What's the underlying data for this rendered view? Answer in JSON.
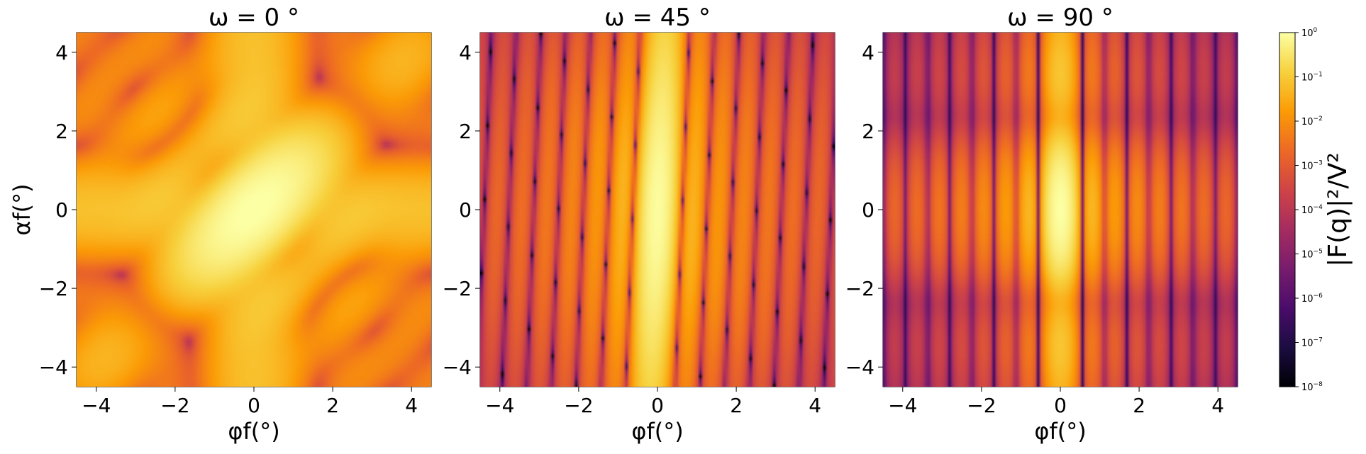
{
  "chart_data": [
    {
      "type": "heatmap",
      "title": "ω = 0 °",
      "xlabel": "φf(°)",
      "ylabel": "αf(°)",
      "xlim": [
        -4.5,
        4.5
      ],
      "ylim": [
        -4.5,
        4.5
      ],
      "xticks": [
        -4,
        -2,
        0,
        2,
        4
      ],
      "yticks": [
        -4,
        -2,
        0,
        2,
        4
      ],
      "xtick_labels": [
        "−4",
        "−2",
        "0",
        "2",
        "4"
      ],
      "ytick_labels": [
        "−4",
        "−2",
        "0",
        "2",
        "4"
      ],
      "colormap": "inferno",
      "pattern": "rotated box form factor; bright diagonal streak through origin with horizontal and vertical streaks",
      "peak_value_at": [
        0,
        0
      ]
    },
    {
      "type": "heatmap",
      "title": "ω = 45 °",
      "xlabel": "φf(°)",
      "xlim": [
        -4.5,
        4.5
      ],
      "ylim": [
        -4.5,
        4.5
      ],
      "xticks": [
        -4,
        -2,
        0,
        2,
        4
      ],
      "yticks": [
        -4,
        -2,
        0,
        2,
        4
      ],
      "xtick_labels": [
        "−4",
        "−2",
        "0",
        "2",
        "4"
      ],
      "ytick_labels": [
        "−4",
        "−2",
        "0",
        "2",
        "4"
      ],
      "colormap": "inferno",
      "pattern": "bright vertical band at φf = 0 with many narrow vertical fringes and oblique dark lines",
      "peak_value_at": [
        0,
        0
      ]
    },
    {
      "type": "heatmap",
      "title": "ω = 90 °",
      "xlabel": "φf(°)",
      "xlim": [
        -4.5,
        4.5
      ],
      "ylim": [
        -4.5,
        4.5
      ],
      "xticks": [
        -4,
        -2,
        0,
        2,
        4
      ],
      "yticks": [
        -4,
        -2,
        0,
        2,
        4
      ],
      "xtick_labels": [
        "−4",
        "−2",
        "0",
        "2",
        "4"
      ],
      "ytick_labels": [
        "−4",
        "−2",
        "0",
        "2",
        "4"
      ],
      "colormap": "inferno",
      "pattern": "separable: vertical fringes in φf times a horizontal bright band at αf = 0",
      "peak_value_at": [
        0,
        0
      ]
    }
  ],
  "colorbar": {
    "label": "|F(q)|²/V²",
    "scale": "log",
    "range": [
      1e-08,
      1
    ],
    "tick_values": [
      1,
      0.1,
      0.01,
      0.001,
      0.0001,
      1e-05,
      1e-06,
      1e-07,
      1e-08
    ],
    "tick_bases": [
      "10",
      "10",
      "10",
      "10",
      "10",
      "10",
      "10",
      "10",
      "10"
    ],
    "tick_exponents": [
      "0",
      "−1",
      "−2",
      "−3",
      "−4",
      "−5",
      "−6",
      "−7",
      "−8"
    ]
  },
  "colors": {
    "colormap_stops": [
      "#000004",
      "#1b0c41",
      "#4a0c6b",
      "#781c6d",
      "#a52c60",
      "#cf4446",
      "#ed6925",
      "#fb9b06",
      "#f7d13d",
      "#fcffa4"
    ]
  }
}
